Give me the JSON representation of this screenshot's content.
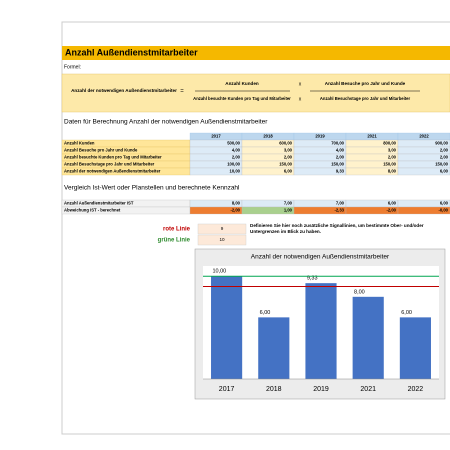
{
  "title": "Anzahl Außendienstmitarbeiter",
  "formula": {
    "label": "Formel:",
    "result": "Anzahl der notwendigen Außendienstmitarbeiter",
    "equals": "=",
    "numerator1": "Anzahl Kunden",
    "times1": "x",
    "numerator2": "Anzahl Besuche pro Jahr und Kunde",
    "denominator1": "Anzahl besuchte Kunden pro Tag und Mitarbeiter",
    "times2": "x",
    "denominator2": "Anzahl Besuchstage pro Jahr und Mitarbeiter"
  },
  "data_table": {
    "heading": "Daten für Berechnung Anzahl der notwendigen Außendienstmitarbeiter",
    "columns": [
      "2017",
      "2018",
      "2019",
      "2021",
      "2022"
    ],
    "rows": [
      {
        "label": "Anzahl Kunden",
        "values": [
          "500,00",
          "600,00",
          "700,00",
          "800,00",
          "900,00"
        ]
      },
      {
        "label": "Anzahl Besuche pro Jahr und Kunde",
        "values": [
          "4,00",
          "3,00",
          "4,00",
          "3,00",
          "2,00"
        ]
      },
      {
        "label": "Anzahl besuchte Kunden pro Tag und Mitarbeiter",
        "values": [
          "2,00",
          "2,00",
          "2,00",
          "2,00",
          "2,00"
        ]
      },
      {
        "label": "Anzahl Besuchstage pro Jahr und Mitarbeiter",
        "values": [
          "100,00",
          "150,00",
          "150,00",
          "150,00",
          "150,00"
        ]
      },
      {
        "label": "Anzahl der notwendigen Außendienstmitarbeiter",
        "values": [
          "10,00",
          "6,00",
          "9,33",
          "8,00",
          "6,00"
        ]
      }
    ]
  },
  "comparison": {
    "heading": "Vergleich Ist-Wert oder Planstellen und berechnete Kennzahl",
    "rows": [
      {
        "label": "Anzahl Außendienstmitarbeiter IST",
        "values": [
          "8,00",
          "7,00",
          "7,00",
          "6,00",
          "6,00"
        ]
      },
      {
        "label": "Abweichung IST - berechnet",
        "values": [
          "-2,00",
          "1,00",
          "-2,33",
          "-2,00",
          "-0,00"
        ]
      }
    ]
  },
  "lines": [
    {
      "label": "rote Linie",
      "value": "9"
    },
    {
      "label": "grüne Linie",
      "value": "10"
    }
  ],
  "lines_note": "Definieren Sie hier noch zusätzliche Signallinien, um bestimmte Ober- und/oder Untergrenzen im Blick zu haben.",
  "chart_data": {
    "type": "bar",
    "title": "Anzahl der notwendigen Außendienstmitarbeiter",
    "categories": [
      "2017",
      "2018",
      "2019",
      "2021",
      "2022"
    ],
    "values": [
      10,
      6,
      9.33,
      8,
      6
    ],
    "value_labels": [
      "10,00",
      "6,00",
      "9,33",
      "8,00",
      "6,00"
    ],
    "color": "#4472c4",
    "ylim": [
      0,
      11
    ],
    "reference_lines": [
      {
        "value": 9,
        "color": "#c00000"
      },
      {
        "value": 10,
        "color": "#00a651"
      }
    ]
  }
}
